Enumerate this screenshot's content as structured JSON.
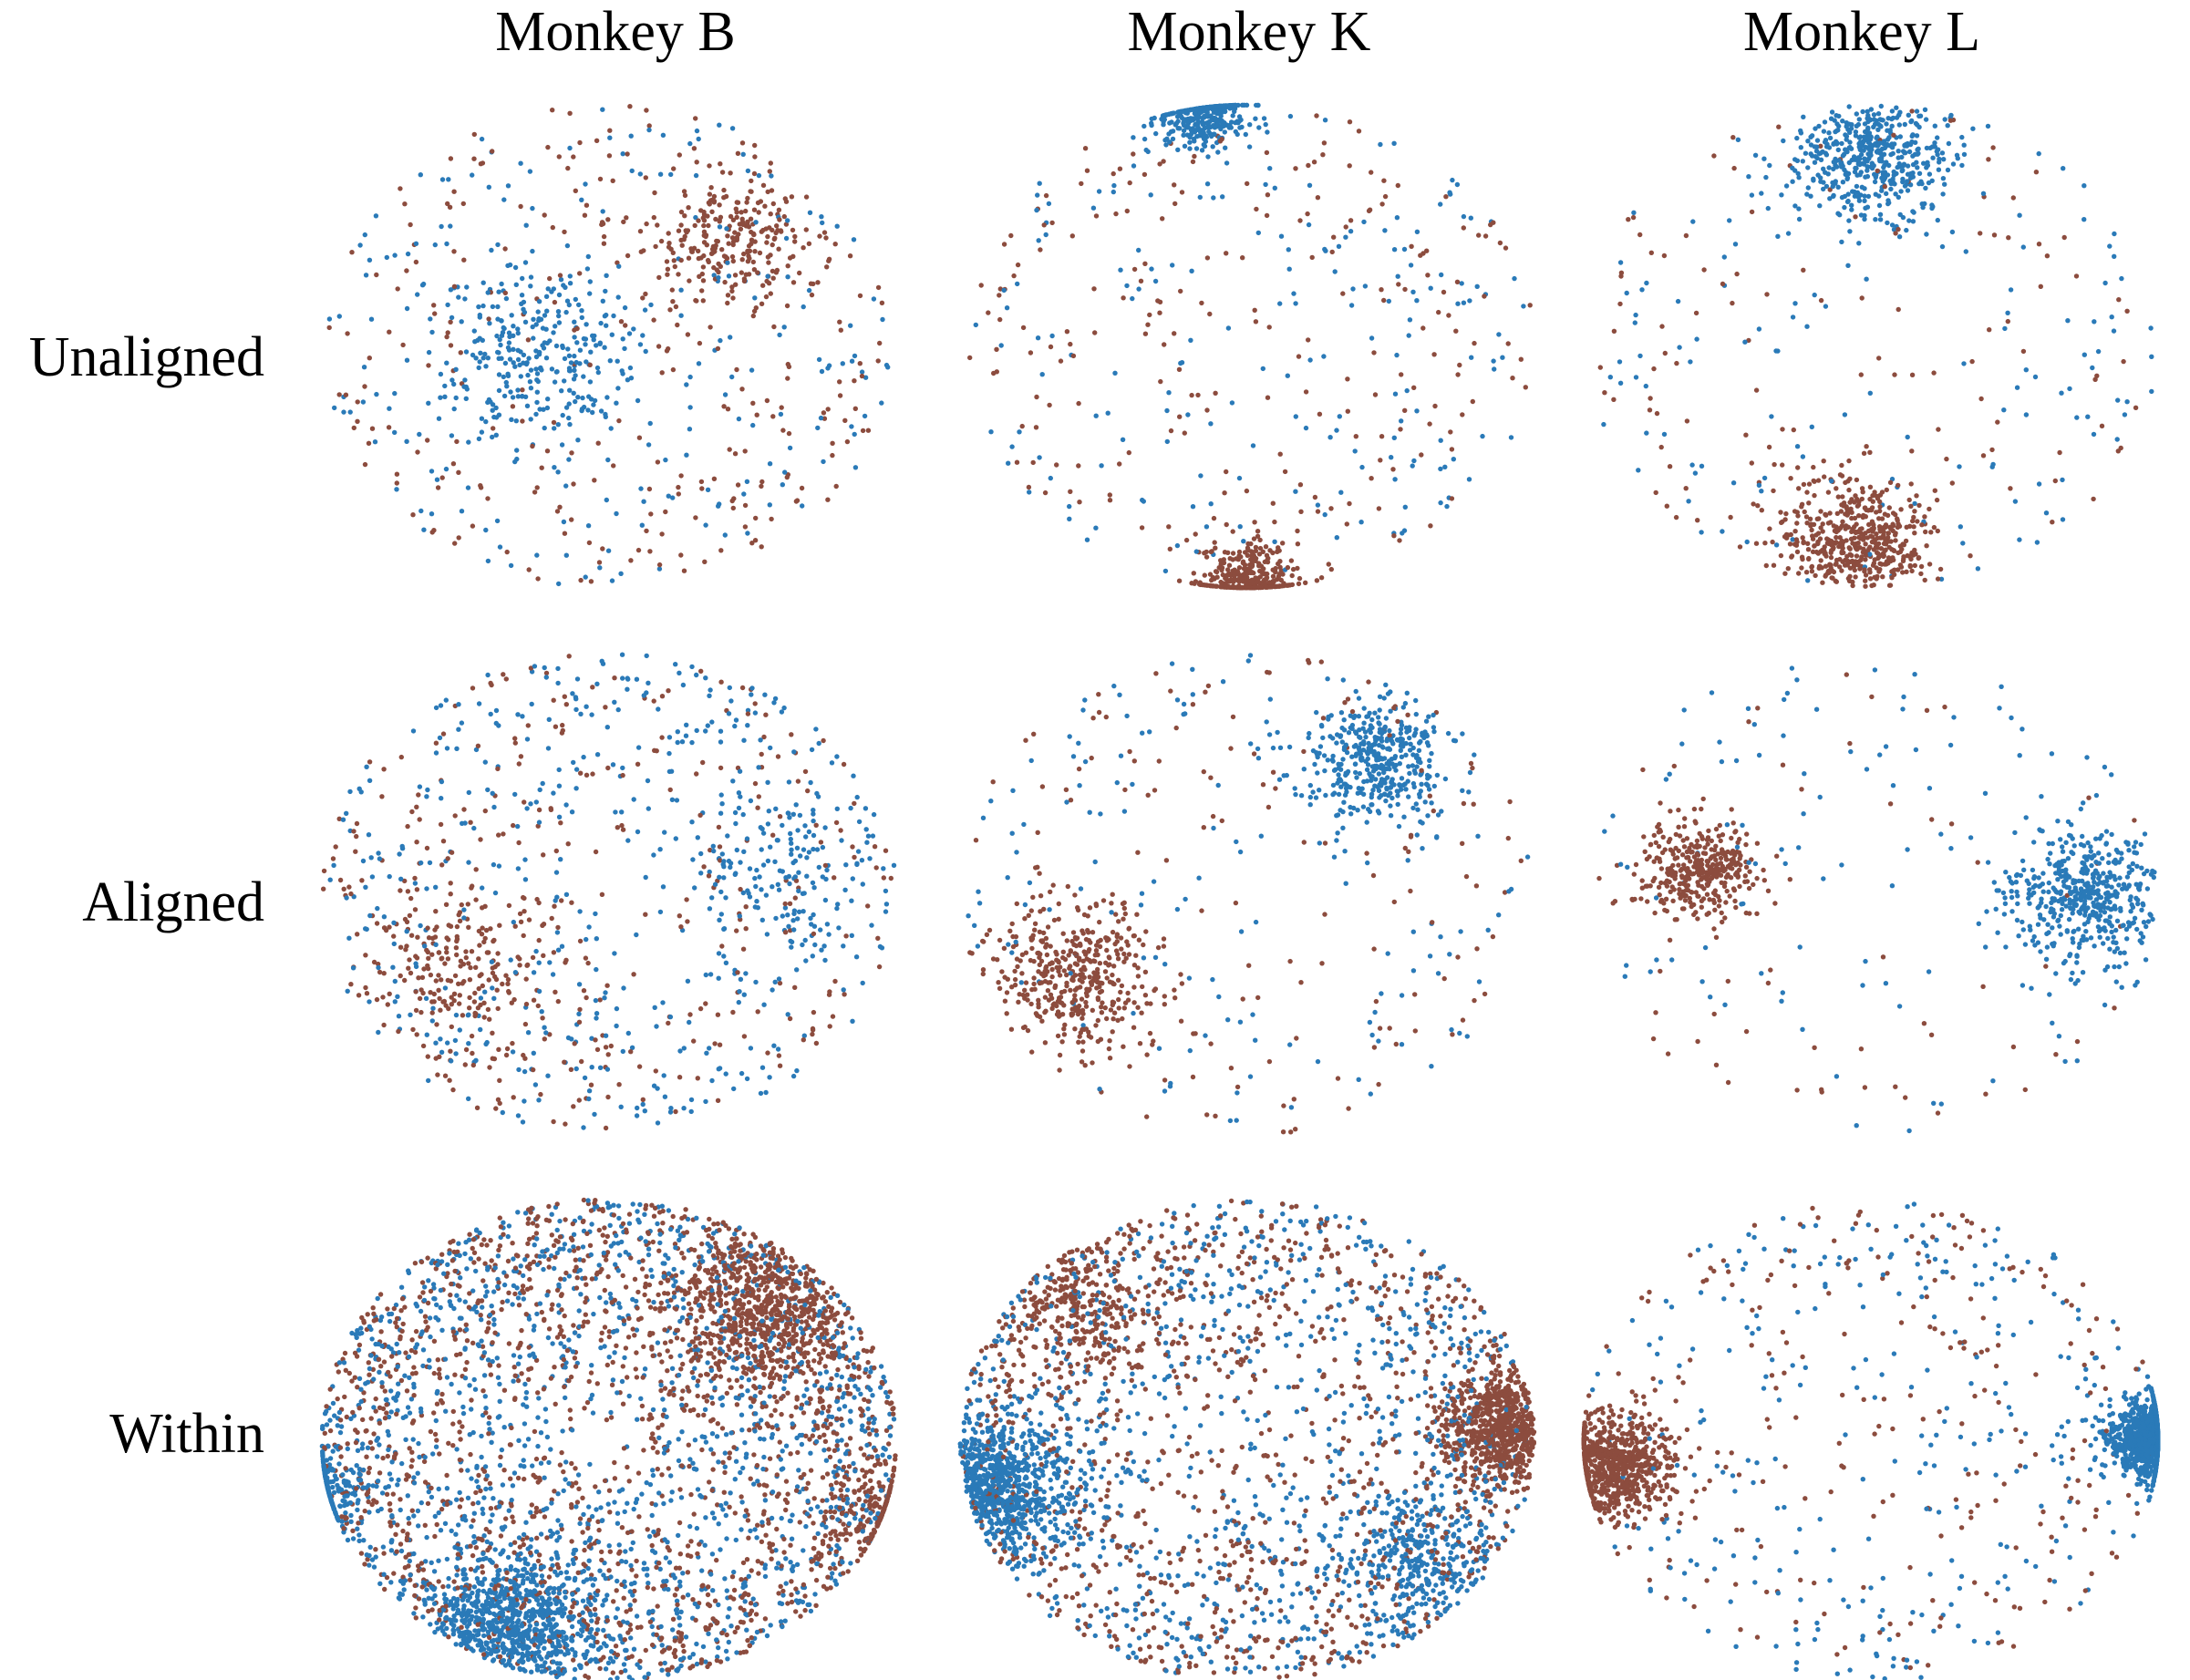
{
  "columns": [
    "Monkey B",
    "Monkey K",
    "Monkey L"
  ],
  "rows": [
    "Unaligned",
    "Aligned",
    "Within"
  ],
  "colors": {
    "blue": "#2a7ab8",
    "brown": "#8c4c3e"
  },
  "chart_data": {
    "type": "scatter",
    "description_free": true,
    "panels": [
      {
        "row": "Unaligned",
        "column": "Monkey B",
        "series": [
          {
            "color": "#2a7ab8",
            "n": 520,
            "clusters": [
              {
                "cx": -0.25,
                "cy": 0.05,
                "s": 0.18,
                "w": 0.6
              }
            ]
          },
          {
            "color": "#8c4c3e",
            "n": 520,
            "clusters": [
              {
                "cx": 0.4,
                "cy": -0.45,
                "s": 0.15,
                "w": 0.5
              }
            ]
          }
        ]
      },
      {
        "row": "Unaligned",
        "column": "Monkey K",
        "series": [
          {
            "color": "#2a7ab8",
            "n": 560,
            "clusters": [
              {
                "cx": -0.15,
                "cy": -0.97,
                "s": 0.08,
                "w": 0.65,
                "edge": true
              }
            ]
          },
          {
            "color": "#8c4c3e",
            "n": 560,
            "clusters": [
              {
                "cx": 0.0,
                "cy": 0.97,
                "s": 0.08,
                "w": 0.6,
                "edge": true
              }
            ]
          }
        ]
      },
      {
        "row": "Unaligned",
        "column": "Monkey L",
        "series": [
          {
            "color": "#2a7ab8",
            "n": 620,
            "clusters": [
              {
                "cx": 0.0,
                "cy": -0.8,
                "s": 0.14,
                "w": 0.75
              }
            ]
          },
          {
            "color": "#8c4c3e",
            "n": 620,
            "clusters": [
              {
                "cx": -0.05,
                "cy": 0.82,
                "s": 0.13,
                "w": 0.8
              }
            ]
          }
        ]
      },
      {
        "row": "Aligned",
        "column": "Monkey B",
        "series": [
          {
            "color": "#2a7ab8",
            "n": 600,
            "clusters": [
              {
                "cx": 0.55,
                "cy": -0.1,
                "s": 0.15,
                "w": 0.25
              }
            ]
          },
          {
            "color": "#8c4c3e",
            "n": 520,
            "clusters": [
              {
                "cx": -0.55,
                "cy": 0.3,
                "s": 0.2,
                "w": 0.4
              }
            ]
          }
        ]
      },
      {
        "row": "Aligned",
        "column": "Monkey K",
        "series": [
          {
            "color": "#2a7ab8",
            "n": 560,
            "clusters": [
              {
                "cx": 0.45,
                "cy": -0.55,
                "s": 0.13,
                "w": 0.72
              }
            ]
          },
          {
            "color": "#8c4c3e",
            "n": 560,
            "clusters": [
              {
                "cx": -0.6,
                "cy": 0.35,
                "s": 0.14,
                "w": 0.72
              }
            ]
          }
        ]
      },
      {
        "row": "Aligned",
        "column": "Monkey L",
        "series": [
          {
            "color": "#2a7ab8",
            "n": 580,
            "clusters": [
              {
                "cx": 0.75,
                "cy": 0.0,
                "s": 0.13,
                "w": 0.8
              }
            ]
          },
          {
            "color": "#8c4c3e",
            "n": 420,
            "clusters": [
              {
                "cx": -0.6,
                "cy": -0.1,
                "s": 0.1,
                "w": 0.82
              }
            ]
          }
        ]
      },
      {
        "row": "Within",
        "column": "Monkey B",
        "series": [
          {
            "color": "#2a7ab8",
            "n": 2400,
            "clusters": [
              {
                "cx": -0.35,
                "cy": 0.78,
                "s": 0.16,
                "w": 0.3
              },
              {
                "cx": -1.0,
                "cy": 0.2,
                "s": 0.1,
                "w": 0.1,
                "edge": true
              }
            ]
          },
          {
            "color": "#8c4c3e",
            "n": 2400,
            "clusters": [
              {
                "cx": 0.55,
                "cy": -0.55,
                "s": 0.18,
                "w": 0.3
              },
              {
                "cx": 0.97,
                "cy": 0.3,
                "s": 0.1,
                "w": 0.1,
                "edge": true
              }
            ]
          }
        ]
      },
      {
        "row": "Within",
        "column": "Monkey K",
        "series": [
          {
            "color": "#2a7ab8",
            "n": 2000,
            "clusters": [
              {
                "cx": -0.92,
                "cy": 0.2,
                "s": 0.15,
                "w": 0.35
              },
              {
                "cx": 0.6,
                "cy": 0.5,
                "s": 0.15,
                "w": 0.25
              }
            ]
          },
          {
            "color": "#8c4c3e",
            "n": 2000,
            "clusters": [
              {
                "cx": 0.92,
                "cy": -0.05,
                "s": 0.12,
                "w": 0.35
              },
              {
                "cx": -0.6,
                "cy": -0.55,
                "s": 0.14,
                "w": 0.2
              }
            ]
          }
        ]
      },
      {
        "row": "Within",
        "column": "Monkey L",
        "series": [
          {
            "color": "#2a7ab8",
            "n": 1600,
            "clusters": [
              {
                "cx": 1.0,
                "cy": 0.0,
                "s": 0.08,
                "w": 0.82,
                "edge": true
              }
            ]
          },
          {
            "color": "#8c4c3e",
            "n": 1000,
            "clusters": [
              {
                "cx": -0.9,
                "cy": 0.1,
                "s": 0.1,
                "w": 0.75,
                "edge": true
              }
            ]
          }
        ]
      }
    ]
  }
}
